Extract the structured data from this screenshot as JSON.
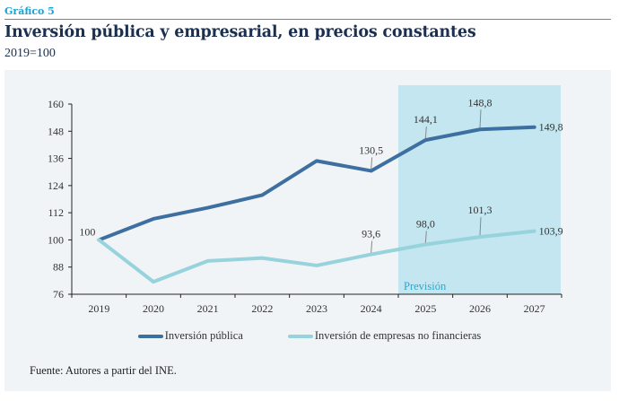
{
  "header": {
    "figure_label": "Gráfico 5",
    "title": "Inversión pública y empresarial, en precios constantes",
    "subtitle": "2019=100"
  },
  "footer": {
    "source": "Fuente: Autores a partir del INE."
  },
  "chart_data": {
    "type": "line",
    "title": "Inversión pública y empresarial, en precios constantes",
    "subtitle": "2019=100",
    "xlabel": "",
    "ylabel": "",
    "x": [
      "2019",
      "2020",
      "2021",
      "2022",
      "2023",
      "2024",
      "2025",
      "2026",
      "2027"
    ],
    "ylim": [
      76,
      160
    ],
    "yticks": [
      76,
      88,
      100,
      112,
      124,
      136,
      148,
      160
    ],
    "grid": false,
    "legend_position": "bottom-center",
    "forecast_region": {
      "from": "2025",
      "to": "2027",
      "label": "Previsión",
      "color": "#c3e6f0"
    },
    "series": [
      {
        "name": "Inversión pública",
        "color": "#3d6fa0",
        "values": [
          100,
          109.3,
          114.2,
          119.8,
          134.9,
          130.5,
          144.1,
          148.8,
          149.8
        ],
        "labels": {
          "0": "100",
          "5": "130,5",
          "6": "144,1",
          "7": "148,8",
          "8": "149,8"
        }
      },
      {
        "name": "Inversión de empresas no financieras",
        "color": "#96d3dc",
        "values": [
          100,
          81.5,
          90.7,
          92.0,
          88.7,
          93.6,
          98.0,
          101.3,
          103.9
        ],
        "labels": {
          "5": "93,6",
          "6": "98,0",
          "7": "101,3",
          "8": "103,9"
        }
      }
    ]
  }
}
